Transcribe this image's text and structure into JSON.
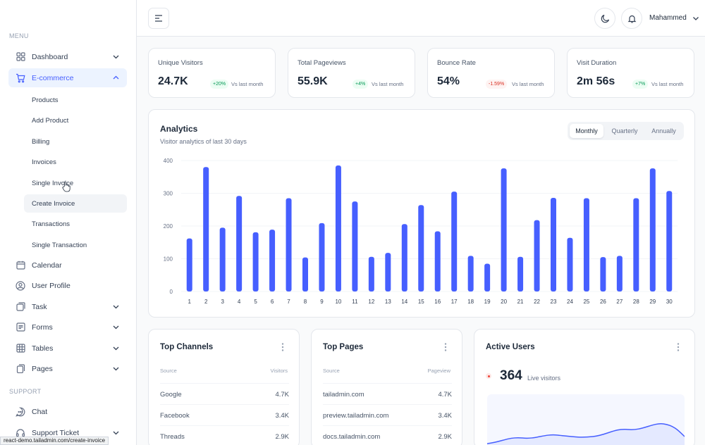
{
  "sidebar": {
    "menu_label": "MENU",
    "support_label": "SUPPORT",
    "items": {
      "dashboard": "Dashboard",
      "ecommerce": "E-commerce",
      "calendar": "Calendar",
      "user_profile": "User Profile",
      "task": "Task",
      "forms": "Forms",
      "tables": "Tables",
      "pages": "Pages",
      "chat": "Chat",
      "support_ticket": "Support Ticket"
    },
    "ecommerce_sub": {
      "products": "Products",
      "add_product": "Add Product",
      "billing": "Billing",
      "invoices": "Invoices",
      "single_invoice": "Single Invoice",
      "create_invoice": "Create Invoice",
      "transactions": "Transactions",
      "single_transaction": "Single Transaction"
    }
  },
  "header": {
    "user_name": "Mahammed"
  },
  "stats": [
    {
      "title": "Unique Visitors",
      "value": "24.7K",
      "change": "+20%",
      "trend": "up",
      "vs": "Vs last month"
    },
    {
      "title": "Total Pageviews",
      "value": "55.9K",
      "change": "+4%",
      "trend": "up",
      "vs": "Vs last month"
    },
    {
      "title": "Bounce Rate",
      "value": "54%",
      "change": "-1.59%",
      "trend": "down",
      "vs": "Vs last month"
    },
    {
      "title": "Visit Duration",
      "value": "2m 56s",
      "change": "+7%",
      "trend": "up",
      "vs": "Vs last month"
    }
  ],
  "analytics": {
    "title": "Analytics",
    "subtitle": "Visitor analytics of last 30 days",
    "periods": {
      "monthly": "Monthly",
      "quarterly": "Quarterly",
      "annually": "Annually"
    },
    "selected_period": "Monthly"
  },
  "chart_data": {
    "type": "bar",
    "categories": [
      "1",
      "2",
      "3",
      "4",
      "5",
      "6",
      "7",
      "8",
      "9",
      "10",
      "11",
      "12",
      "13",
      "14",
      "15",
      "16",
      "17",
      "18",
      "19",
      "20",
      "21",
      "22",
      "23",
      "24",
      "25",
      "26",
      "27",
      "28",
      "29",
      "30"
    ],
    "values": [
      162,
      380,
      195,
      292,
      181,
      189,
      285,
      104,
      209,
      385,
      275,
      106,
      118,
      206,
      264,
      184,
      305,
      109,
      85,
      376,
      106,
      218,
      286,
      164,
      285,
      105,
      109,
      285,
      376,
      307
    ],
    "ylim": [
      0,
      400
    ],
    "yticks": [
      "0",
      "100",
      "200",
      "300",
      "400"
    ],
    "grid": true,
    "color": "#465fff"
  },
  "top_channels": {
    "title": "Top Channels",
    "col_source": "Source",
    "col_visitors": "Visitors",
    "rows": [
      {
        "label": "Google",
        "value": "4.7K"
      },
      {
        "label": "Facebook",
        "value": "3.4K"
      },
      {
        "label": "Threads",
        "value": "2.9K"
      }
    ]
  },
  "top_pages": {
    "title": "Top Pages",
    "col_source": "Source",
    "col_pageview": "Pageview",
    "rows": [
      {
        "label": "tailadmin.com",
        "value": "4.7K"
      },
      {
        "label": "preview.tailadmin.com",
        "value": "3.4K"
      },
      {
        "label": "docs.tailadmin.com",
        "value": "2.9K"
      }
    ]
  },
  "active_users": {
    "title": "Active Users",
    "count": "364",
    "live_label": "Live visitors"
  },
  "status_bar_url": "react-demo.tailadmin.com/create-invoice",
  "colors": {
    "accent": "#465fff",
    "positive": "#039855",
    "negative": "#d92d20"
  }
}
